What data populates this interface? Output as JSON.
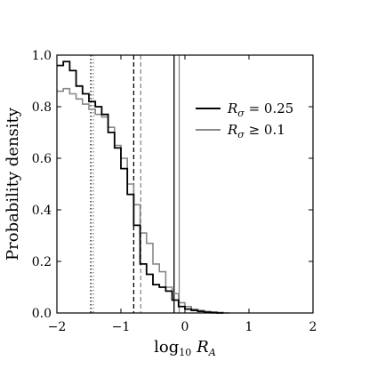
{
  "chart_data": {
    "type": "line",
    "title": "",
    "xlabel": "log₁₀ R_A",
    "xlabel_parts": {
      "main": "log",
      "sub": "10",
      "var": "R",
      "var_sub": "A"
    },
    "ylabel": "Probability density",
    "xlim": [
      -2,
      2
    ],
    "ylim": [
      0,
      1.0
    ],
    "x_ticks": [
      -2,
      -1,
      0,
      1,
      2
    ],
    "x_tick_labels": [
      "−2",
      "−1",
      "0",
      "1",
      "2"
    ],
    "y_ticks": [
      0.0,
      0.2,
      0.4,
      0.6,
      0.8,
      1.0
    ],
    "y_tick_labels": [
      "0.0",
      "0.2",
      "0.4",
      "0.6",
      "0.8",
      "1.0"
    ],
    "grid": false,
    "legend_position": "right",
    "series": [
      {
        "name": "R_σ = 0.25",
        "legend_parts": {
          "var": "R",
          "sub": "σ",
          "rest": " = 0.25"
        },
        "style": "step",
        "color": "#000000",
        "bin_edges": [
          -2.0,
          -1.9,
          -1.8,
          -1.7,
          -1.6,
          -1.5,
          -1.4,
          -1.3,
          -1.2,
          -1.1,
          -1.0,
          -0.9,
          -0.8,
          -0.7,
          -0.6,
          -0.5,
          -0.4,
          -0.3,
          -0.2,
          -0.1,
          0.0,
          0.1,
          0.2,
          0.3,
          0.4,
          0.5,
          0.6
        ],
        "values": [
          0.96,
          0.975,
          0.94,
          0.88,
          0.85,
          0.82,
          0.8,
          0.77,
          0.7,
          0.64,
          0.56,
          0.46,
          0.34,
          0.19,
          0.15,
          0.11,
          0.1,
          0.085,
          0.05,
          0.025,
          0.015,
          0.01,
          0.006,
          0.003,
          0.001,
          0.0
        ]
      },
      {
        "name": "R_σ ≥ 0.1",
        "legend_parts": {
          "var": "R",
          "sub": "σ",
          "rest": " ≥ 0.1"
        },
        "style": "step",
        "color": "#888888",
        "bin_edges": [
          -2.0,
          -1.9,
          -1.8,
          -1.7,
          -1.6,
          -1.5,
          -1.4,
          -1.3,
          -1.2,
          -1.1,
          -1.0,
          -0.9,
          -0.8,
          -0.7,
          -0.6,
          -0.5,
          -0.4,
          -0.3,
          -0.2,
          -0.1,
          0.0,
          0.1,
          0.2,
          0.3,
          0.4,
          0.5,
          0.6,
          0.7
        ],
        "values": [
          0.86,
          0.87,
          0.85,
          0.83,
          0.81,
          0.79,
          0.77,
          0.76,
          0.72,
          0.65,
          0.6,
          0.5,
          0.42,
          0.31,
          0.27,
          0.19,
          0.16,
          0.1,
          0.075,
          0.04,
          0.025,
          0.015,
          0.01,
          0.006,
          0.004,
          0.002,
          0.0
        ]
      }
    ],
    "vertical_lines": [
      {
        "x": -1.47,
        "style": "dotted",
        "color": "#000000"
      },
      {
        "x": -1.43,
        "style": "dotted",
        "color": "#888888"
      },
      {
        "x": -0.8,
        "style": "dashed",
        "color": "#000000"
      },
      {
        "x": -0.69,
        "style": "dashed",
        "color": "#888888"
      },
      {
        "x": -0.17,
        "style": "solid",
        "color": "#000000"
      },
      {
        "x": -0.09,
        "style": "solid",
        "color": "#888888"
      }
    ]
  }
}
